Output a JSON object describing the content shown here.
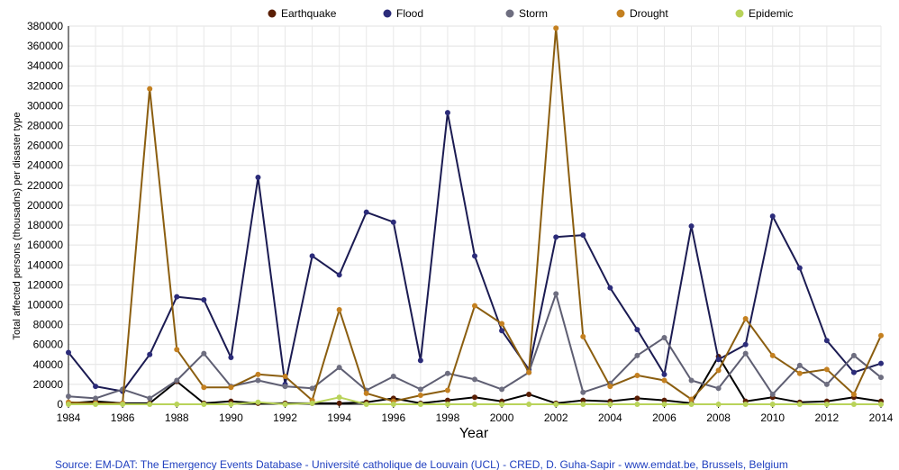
{
  "chart_data": {
    "type": "line",
    "xlabel": "Year",
    "ylabel": "Total affected persons (thousadns) per  disaster type",
    "ylim": [
      0,
      380000
    ],
    "xlim": [
      1984,
      2014
    ],
    "y_ticks": [
      0,
      20000,
      40000,
      60000,
      80000,
      100000,
      120000,
      140000,
      160000,
      180000,
      200000,
      220000,
      240000,
      260000,
      280000,
      300000,
      320000,
      340000,
      360000,
      380000
    ],
    "x_ticks": [
      1984,
      1986,
      1988,
      1990,
      1992,
      1994,
      1996,
      1998,
      2000,
      2002,
      2004,
      2006,
      2008,
      2010,
      2012,
      2014
    ],
    "grid": true,
    "legend_position": "top",
    "x": [
      1984,
      1985,
      1986,
      1987,
      1988,
      1989,
      1990,
      1991,
      1992,
      1993,
      1994,
      1995,
      1996,
      1997,
      1998,
      1999,
      2000,
      2001,
      2002,
      2003,
      2004,
      2005,
      2006,
      2007,
      2008,
      2009,
      2010,
      2011,
      2012,
      2013,
      2014
    ],
    "series": [
      {
        "name": "Earthquake",
        "line_color": "#000000",
        "marker_color": "#5a1e04",
        "values": [
          1000,
          3000,
          1000,
          1000,
          23000,
          1000,
          3000,
          1000,
          1000,
          1000,
          1000,
          2000,
          6000,
          1000,
          4000,
          7000,
          3000,
          10000,
          1000,
          4000,
          3000,
          6000,
          4000,
          1000,
          48000,
          3000,
          7000,
          2000,
          3000,
          7000,
          3000
        ]
      },
      {
        "name": "Flood",
        "line_color": "#1b1b52",
        "marker_color": "#2c2c7a",
        "values": [
          52000,
          18000,
          13000,
          50000,
          108000,
          105000,
          47000,
          228000,
          20000,
          149000,
          130000,
          193000,
          183000,
          44000,
          293000,
          149000,
          74000,
          35000,
          168000,
          170000,
          117000,
          75000,
          30000,
          179000,
          45000,
          60000,
          189000,
          137000,
          64000,
          32000,
          41000
        ]
      },
      {
        "name": "Storm",
        "line_color": "#5e5e72",
        "marker_color": "#6e6e80",
        "values": [
          8000,
          6000,
          15000,
          6000,
          24000,
          51000,
          18000,
          24000,
          18000,
          16000,
          37000,
          14000,
          28000,
          15000,
          31000,
          25000,
          15000,
          32000,
          111000,
          12000,
          21000,
          49000,
          67000,
          24000,
          16000,
          51000,
          10000,
          39000,
          20000,
          49000,
          27000
        ]
      },
      {
        "name": "Drought",
        "line_color": "#8b5e10",
        "marker_color": "#c48020",
        "values": [
          2000,
          1000,
          1000,
          317000,
          55000,
          17000,
          17000,
          30000,
          28000,
          4000,
          95000,
          11000,
          3000,
          9000,
          14000,
          99000,
          81000,
          32000,
          378000,
          68000,
          18000,
          29000,
          24000,
          5000,
          34000,
          86000,
          49000,
          31000,
          35000,
          10000,
          69000
        ]
      },
      {
        "name": "Epidemic",
        "line_color": "#b9d35a",
        "marker_color": "#b9d35a",
        "values": [
          0,
          0,
          0,
          0,
          0,
          0,
          0,
          2000,
          0,
          1000,
          7000,
          0,
          0,
          0,
          0,
          0,
          0,
          0,
          0,
          0,
          0,
          0,
          0,
          0,
          0,
          0,
          0,
          0,
          0,
          0,
          0
        ]
      }
    ]
  },
  "source_text": "Source: EM-DAT: The Emergency Events Database - Université catholique de Louvain (UCL) - CRED, D. Guha-Sapir - www.emdat.be, Brussels, Belgium"
}
